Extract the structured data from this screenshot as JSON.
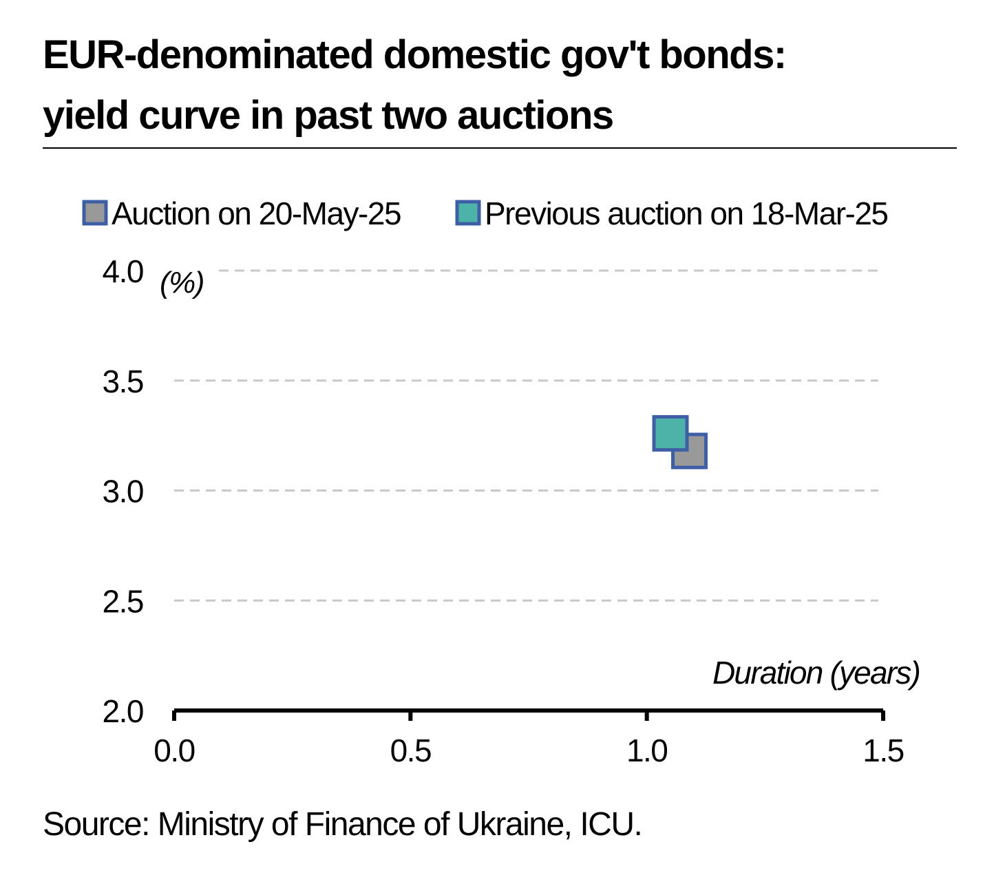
{
  "title_line1": "EUR-denominated domestic gov't bonds:",
  "title_line2": "yield curve in past two auctions",
  "source": "Source: Ministry of Finance of Ukraine, ICU.",
  "colors": {
    "series_current": "#999999",
    "series_previous": "#4DB3A8",
    "marker_border": "#3E5FA6",
    "grid": "#c8c8c8",
    "axis": "#000000"
  },
  "chart_data": {
    "type": "scatter",
    "title": "EUR-denominated domestic gov't bonds: yield curve in past two auctions",
    "xlabel": "Duration (years)",
    "ylabel": "(%)",
    "xlim": [
      0,
      1.5
    ],
    "ylim": [
      2.0,
      4.0
    ],
    "x_ticks": [
      "0.0",
      "0.5",
      "1.0",
      "1.5"
    ],
    "y_ticks": [
      "2.0",
      "2.5",
      "3.0",
      "3.5",
      "4.0"
    ],
    "grid": true,
    "legend_position": "top",
    "series": [
      {
        "name": "Auction on 20-May-25",
        "points": [
          {
            "x": 1.09,
            "y": 3.18
          }
        ]
      },
      {
        "name": "Previous auction on 18-Mar-25",
        "points": [
          {
            "x": 1.05,
            "y": 3.26
          }
        ]
      }
    ]
  }
}
